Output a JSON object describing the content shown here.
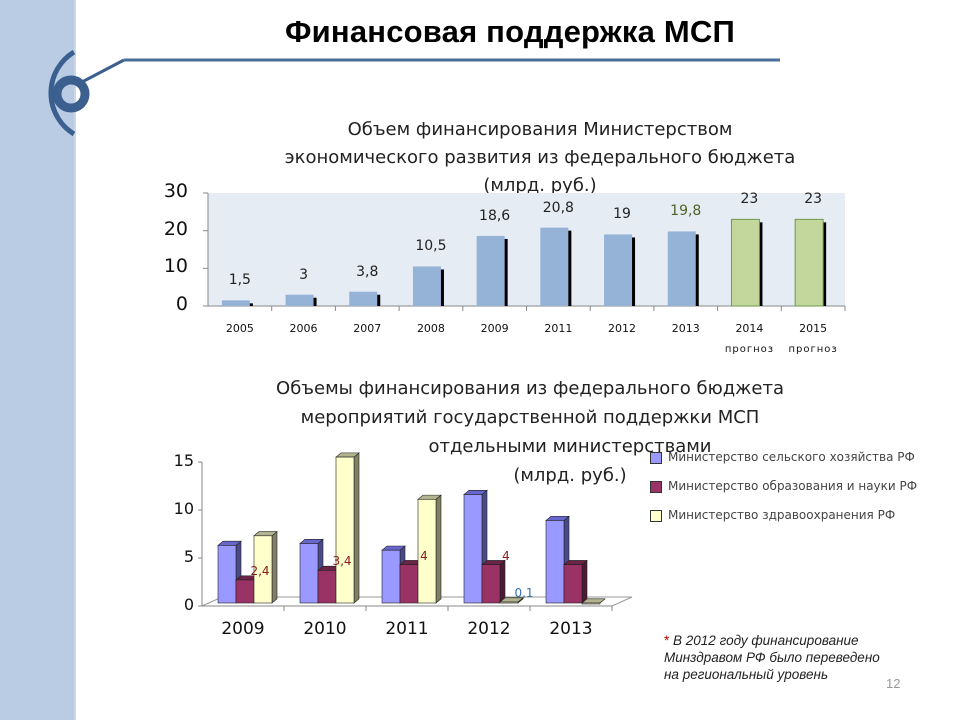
{
  "slide": {
    "title": "Финансовая поддержка МСП",
    "page_number": "12",
    "colors": {
      "sidebar": "#b9cce3",
      "accent": "#3b6090"
    }
  },
  "footnote": {
    "star": "*",
    "text_lines": [
      "В 2012 году финансирование",
      "Минздравом РФ было переведено",
      "на региональный уровень"
    ]
  },
  "chart_data": [
    {
      "type": "bar",
      "title": "Объем финансирования Министерством экономического развития из федерального бюджета (млрд. руб.)",
      "title_lines": [
        "Объем финансирования Министерством",
        "экономического развития из федерального бюджета",
        "(млрд. руб.)"
      ],
      "categories": [
        "2005",
        "2006",
        "2007",
        "2008",
        "2009",
        "2011",
        "2012",
        "2013",
        "2014",
        "2015"
      ],
      "category_sublabels": [
        "",
        "",
        "",
        "",
        "",
        "",
        "",
        "",
        "прогноз",
        "прогноз"
      ],
      "values": [
        1.5,
        3,
        3.8,
        10.5,
        18.6,
        20.8,
        19,
        19.8,
        23,
        23
      ],
      "value_labels": [
        "1,5",
        "3",
        "3,8",
        "10,5",
        "18,6",
        "20,8",
        "19",
        "19,8",
        "23",
        "23"
      ],
      "bar_colors": [
        "#95b3d7",
        "#95b3d7",
        "#95b3d7",
        "#95b3d7",
        "#95b3d7",
        "#95b3d7",
        "#95b3d7",
        "#95b3d7",
        "#c3d69b",
        "#c3d69b"
      ],
      "xlabel": "",
      "ylabel": "",
      "ylim": [
        0,
        30
      ],
      "yticks": [
        "0",
        "10",
        "20",
        "30"
      ],
      "grid": false,
      "legend": null,
      "plot_background": "#e6ecf4"
    },
    {
      "type": "bar",
      "style": "3d-clustered",
      "title": "Объемы финансирования из федерального бюджета мероприятий государственной поддержки МСП отдельными министерствами (млрд. руб.)",
      "title_lines": [
        "Объемы финансирования из федерального бюджета",
        "мероприятий государственной поддержки МСП",
        "отдельными министерствами",
        "(млрд. руб.)"
      ],
      "categories": [
        "2009",
        "2010",
        "2011",
        "2012",
        "2013"
      ],
      "series": [
        {
          "name": "Министерство сельского хозяйства РФ",
          "color": "#9999ff",
          "values": [
            6,
            6.2,
            5.5,
            11.3,
            8.6
          ]
        },
        {
          "name": "Министерство образования и науки РФ",
          "color": "#993366",
          "values": [
            2.4,
            3.4,
            4,
            4,
            4
          ]
        },
        {
          "name": "Министерство здравоохранения РФ",
          "color": "#ffffcc",
          "values": [
            7,
            15.2,
            10.8,
            0.1,
            0
          ]
        }
      ],
      "data_labels": [
        {
          "category": "2009",
          "series": 1,
          "text": "2,4"
        },
        {
          "category": "2010",
          "series": 1,
          "text": "3,4"
        },
        {
          "category": "2011",
          "series": 1,
          "text": "4"
        },
        {
          "category": "2012",
          "series": 1,
          "text": "4"
        },
        {
          "category": "2012",
          "series": 2,
          "text": "0,1"
        }
      ],
      "xlabel": "",
      "ylabel": "",
      "ylim": [
        0,
        15
      ],
      "yticks": [
        "0",
        "5",
        "10",
        "15"
      ],
      "grid": false,
      "legend": {
        "position": "right"
      }
    }
  ]
}
